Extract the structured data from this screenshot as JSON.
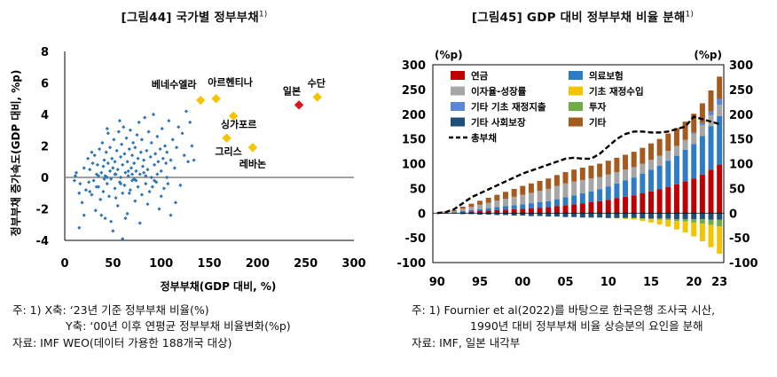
{
  "chart_data": [
    {
      "type": "scatter",
      "title": "[그림44] 국가별 정부부채",
      "title_sup": "1)",
      "xlabel": "정부부채(GDP 대비, %)",
      "ylabel": "정부부채 증가속도(GDP 대비, %p)",
      "xlim": [
        0,
        300
      ],
      "ylim": [
        -4,
        8
      ],
      "x_ticks": [
        "0",
        "50",
        "100",
        "150",
        "200",
        "250",
        "300"
      ],
      "y_ticks": [
        "8",
        "6",
        "4",
        "2",
        "0",
        "-2",
        "-4"
      ],
      "highlights": [
        {
          "label": "베네수엘라",
          "x": 141,
          "y": 4.9,
          "color": "#f5c400"
        },
        {
          "label": "아르헨티나",
          "x": 157,
          "y": 5.0,
          "color": "#f5c400"
        },
        {
          "label": "싱가포르",
          "x": 175,
          "y": 3.9,
          "color": "#f5c400"
        },
        {
          "label": "그리스",
          "x": 168,
          "y": 2.5,
          "color": "#f5c400"
        },
        {
          "label": "레바논",
          "x": 195,
          "y": 1.9,
          "color": "#f5c400"
        },
        {
          "label": "일본",
          "x": 243,
          "y": 4.6,
          "color": "#e0141e"
        },
        {
          "label": "수단",
          "x": 262,
          "y": 5.1,
          "color": "#f5c400"
        }
      ],
      "points": [
        [
          10,
          -0.2
        ],
        [
          12,
          0.3
        ],
        [
          15,
          -3.2
        ],
        [
          18,
          -1.6
        ],
        [
          20,
          0.6
        ],
        [
          22,
          -0.8
        ],
        [
          24,
          1.2
        ],
        [
          25,
          -0.3
        ],
        [
          26,
          0.5
        ],
        [
          28,
          -1.1
        ],
        [
          29,
          0.9
        ],
        [
          30,
          -0.2
        ],
        [
          31,
          1.4
        ],
        [
          32,
          -2.1
        ],
        [
          33,
          0.2
        ],
        [
          34,
          0.8
        ],
        [
          35,
          -0.6
        ],
        [
          36,
          1.8
        ],
        [
          37,
          -1.4
        ],
        [
          38,
          0.3
        ],
        [
          39,
          2.2
        ],
        [
          40,
          -0.9
        ],
        [
          40,
          0.7
        ],
        [
          41,
          1.1
        ],
        [
          42,
          -2.6
        ],
        [
          42,
          0.1
        ],
        [
          43,
          1.6
        ],
        [
          44,
          -0.4
        ],
        [
          45,
          0.9
        ],
        [
          45,
          2.8
        ],
        [
          46,
          -1.2
        ],
        [
          47,
          0.4
        ],
        [
          47,
          1.9
        ],
        [
          48,
          -0.1
        ],
        [
          49,
          1.2
        ],
        [
          50,
          -3.4
        ],
        [
          50,
          0.6
        ],
        [
          51,
          2.4
        ],
        [
          52,
          -0.7
        ],
        [
          52,
          1.0
        ],
        [
          53,
          0.2
        ],
        [
          54,
          1.7
        ],
        [
          55,
          -1.8
        ],
        [
          55,
          0.5
        ],
        [
          56,
          2.9
        ],
        [
          57,
          -0.3
        ],
        [
          58,
          1.3
        ],
        [
          58,
          0.0
        ],
        [
          59,
          2.1
        ],
        [
          60,
          -1.0
        ],
        [
          60,
          0.8
        ],
        [
          61,
          3.2
        ],
        [
          62,
          -0.5
        ],
        [
          62,
          1.5
        ],
        [
          63,
          0.3
        ],
        [
          64,
          2.5
        ],
        [
          65,
          -2.3
        ],
        [
          65,
          1.0
        ],
        [
          66,
          0.1
        ],
        [
          67,
          1.8
        ],
        [
          68,
          -0.8
        ],
        [
          68,
          3.0
        ],
        [
          69,
          0.6
        ],
        [
          70,
          1.4
        ],
        [
          70,
          -0.2
        ],
        [
          71,
          2.2
        ],
        [
          72,
          0.9
        ],
        [
          73,
          -1.5
        ],
        [
          73,
          1.9
        ],
        [
          74,
          0.4
        ],
        [
          75,
          2.7
        ],
        [
          76,
          -0.6
        ],
        [
          76,
          1.2
        ],
        [
          77,
          3.5
        ],
        [
          78,
          0.2
        ],
        [
          79,
          1.6
        ],
        [
          80,
          -1.1
        ],
        [
          80,
          2.4
        ],
        [
          81,
          0.7
        ],
        [
          82,
          1.1
        ],
        [
          83,
          3.8
        ],
        [
          84,
          -0.4
        ],
        [
          85,
          1.7
        ],
        [
          86,
          0.5
        ],
        [
          87,
          2.9
        ],
        [
          88,
          -0.9
        ],
        [
          89,
          1.3
        ],
        [
          90,
          0.0
        ],
        [
          90,
          2.2
        ],
        [
          92,
          4.0
        ],
        [
          93,
          0.8
        ],
        [
          94,
          1.5
        ],
        [
          95,
          -0.3
        ],
        [
          96,
          2.6
        ],
        [
          97,
          1.0
        ],
        [
          98,
          -2.0
        ],
        [
          99,
          1.8
        ],
        [
          100,
          0.4
        ],
        [
          101,
          3.1
        ],
        [
          102,
          1.2
        ],
        [
          103,
          -0.7
        ],
        [
          104,
          2.0
        ],
        [
          105,
          0.9
        ],
        [
          106,
          1.6
        ],
        [
          108,
          3.6
        ],
        [
          110,
          -2.4
        ],
        [
          110,
          1.1
        ],
        [
          112,
          2.4
        ],
        [
          114,
          0.6
        ],
        [
          116,
          1.9
        ],
        [
          118,
          3.2
        ],
        [
          120,
          -0.5
        ],
        [
          122,
          2.8
        ],
        [
          124,
          1.4
        ],
        [
          126,
          4.2
        ],
        [
          128,
          1.0
        ],
        [
          130,
          3.5
        ],
        [
          132,
          2.0
        ],
        [
          134,
          1.1
        ],
        [
          15,
          -1.0
        ],
        [
          20,
          -2.4
        ],
        [
          28,
          1.6
        ],
        [
          35,
          0.1
        ],
        [
          44,
          3.1
        ],
        [
          48,
          -2.8
        ],
        [
          53,
          -1.3
        ],
        [
          57,
          3.6
        ],
        [
          63,
          -2.6
        ],
        [
          67,
          -1.0
        ],
        [
          72,
          -0.1
        ],
        [
          78,
          -2.9
        ],
        [
          86,
          -1.7
        ],
        [
          91,
          -0.6
        ],
        [
          100,
          -1.2
        ],
        [
          107,
          -0.4
        ],
        [
          115,
          -1.6
        ],
        [
          60,
          -3.9
        ],
        [
          38,
          -2.4
        ],
        [
          26,
          -0.9
        ],
        [
          44,
          0.0
        ],
        [
          52,
          0.2
        ],
        [
          66,
          0.4
        ],
        [
          74,
          -0.2
        ],
        [
          82,
          0.3
        ],
        [
          96,
          0.2
        ],
        [
          106,
          0.0
        ],
        [
          11,
          0.1
        ],
        [
          16,
          -0.4
        ],
        [
          33,
          -0.6
        ],
        [
          41,
          -0.1
        ],
        [
          58,
          -0.4
        ],
        [
          70,
          0.2
        ],
        [
          84,
          0.1
        ],
        [
          93,
          -0.2
        ]
      ]
    },
    {
      "type": "bar",
      "stacked": true,
      "title": "[그림45] GDP 대비 정부부채 비율 분해",
      "title_sup": "1)",
      "ylabel_left": "(%p)",
      "ylabel_right": "(%p)",
      "ylim": [
        -100,
        300
      ],
      "y_ticks": [
        "300",
        "250",
        "200",
        "150",
        "100",
        "50",
        "0",
        "-50",
        "-100"
      ],
      "x_ticks": [
        "90",
        "95",
        "00",
        "05",
        "10",
        "15",
        "20",
        "23"
      ],
      "categories": [
        1990,
        1991,
        1992,
        1993,
        1994,
        1995,
        1996,
        1997,
        1998,
        1999,
        2000,
        2001,
        2002,
        2003,
        2004,
        2005,
        2006,
        2007,
        2008,
        2009,
        2010,
        2011,
        2012,
        2013,
        2014,
        2015,
        2016,
        2017,
        2018,
        2019,
        2020,
        2021,
        2022,
        2023
      ],
      "series": [
        {
          "name": "연금",
          "color": "#c00000",
          "values": [
            0,
            0.5,
            1,
            2,
            3,
            4,
            5,
            6,
            7,
            8,
            9,
            10,
            11,
            12,
            14,
            16,
            18,
            20,
            22,
            24,
            27,
            30,
            33,
            36,
            40,
            44,
            48,
            53,
            58,
            64,
            70,
            78,
            88,
            98
          ]
        },
        {
          "name": "의료보험",
          "color": "#2f7cc6",
          "values": [
            0,
            0.5,
            1,
            2,
            3,
            4,
            5,
            6,
            7,
            8,
            9,
            10,
            11,
            12,
            14,
            16,
            18,
            20,
            22,
            24,
            27,
            30,
            33,
            36,
            40,
            44,
            48,
            53,
            58,
            64,
            70,
            78,
            88,
            98
          ]
        },
        {
          "name": "이자율-성장률",
          "color": "#a6a6a6",
          "values": [
            0,
            1,
            2,
            5,
            7,
            9,
            11,
            13,
            15,
            17,
            19,
            21,
            23,
            25,
            27,
            28,
            28,
            27,
            26,
            25,
            24,
            23,
            22,
            21,
            20,
            20,
            20,
            20,
            20,
            20,
            21,
            22,
            22,
            23
          ]
        },
        {
          "name": "기초 재정수입",
          "color": "#f5c400",
          "values": [
            0,
            0,
            0,
            0,
            0,
            0,
            0,
            0,
            0,
            0,
            0,
            0,
            0,
            0,
            0,
            0,
            0,
            0,
            0,
            0,
            0,
            -1,
            -2,
            -3,
            -5,
            -7,
            -10,
            -13,
            -17,
            -22,
            -28,
            -36,
            -45,
            -55
          ]
        },
        {
          "name": "기타 기초 재정지출",
          "color": "#5b86d6",
          "values": [
            0,
            0,
            0,
            0,
            0,
            0,
            0,
            0,
            0,
            0,
            0,
            0,
            0,
            0,
            0,
            0,
            0,
            0,
            0,
            0,
            0,
            0,
            0,
            0,
            0,
            0,
            0,
            0,
            0,
            0,
            2,
            4,
            8,
            12
          ]
        },
        {
          "name": "투자",
          "color": "#70ad47",
          "values": [
            0,
            0,
            0,
            0,
            0,
            0,
            0,
            0,
            0,
            0,
            0,
            0,
            0,
            0,
            0,
            0,
            0,
            0,
            0,
            0,
            0,
            0,
            0,
            0,
            0,
            -1,
            -2,
            -3,
            -4,
            -5,
            -7,
            -9,
            -11,
            -14
          ]
        },
        {
          "name": "기타 사회보장",
          "color": "#1f4e79",
          "values": [
            0,
            -1,
            -1,
            -2,
            -2,
            -3,
            -3,
            -4,
            -4,
            -5,
            -5,
            -6,
            -6,
            -7,
            -7,
            -8,
            -8,
            -9,
            -9,
            -9,
            -10,
            -10,
            -10,
            -10,
            -11,
            -11,
            -11,
            -11,
            -12,
            -12,
            -12,
            -12,
            -13,
            -13
          ]
        },
        {
          "name": "기타",
          "color": "#a55a1e",
          "values": [
            0,
            1,
            2,
            4,
            6,
            8,
            10,
            12,
            14,
            16,
            18,
            19,
            20,
            21,
            22,
            23,
            24,
            25,
            26,
            27,
            28,
            29,
            30,
            31,
            32,
            33,
            34,
            35,
            36,
            37,
            38,
            40,
            42,
            45
          ]
        },
        {
          "name": "총부채",
          "color": "#000000",
          "type": "line",
          "dashed": true,
          "values": [
            0,
            2,
            8,
            20,
            32,
            40,
            48,
            56,
            64,
            72,
            80,
            86,
            92,
            98,
            104,
            110,
            112,
            110,
            110,
            120,
            135,
            150,
            160,
            165,
            165,
            163,
            163,
            165,
            170,
            175,
            195,
            190,
            185,
            180
          ]
        }
      ]
    }
  ],
  "left_notes": {
    "line1": "주: 1) X축: ‘23년 기준 정부부채 비율(%)",
    "line2": "Y축: ‘00년 이후 연평균 정부부채 비율변화(%p)",
    "line3": "자료: IMF WEO(데이터 가용한 188개국 대상)"
  },
  "right_notes": {
    "line1": "주: 1) Fournier et al(2022)를 바탕으로 한국은행 조사국 시산,",
    "line2": "1990년 대비 정부부채 비율 상승분의 요인을 분해",
    "line3": "자료: IMF, 일본 내각부"
  }
}
